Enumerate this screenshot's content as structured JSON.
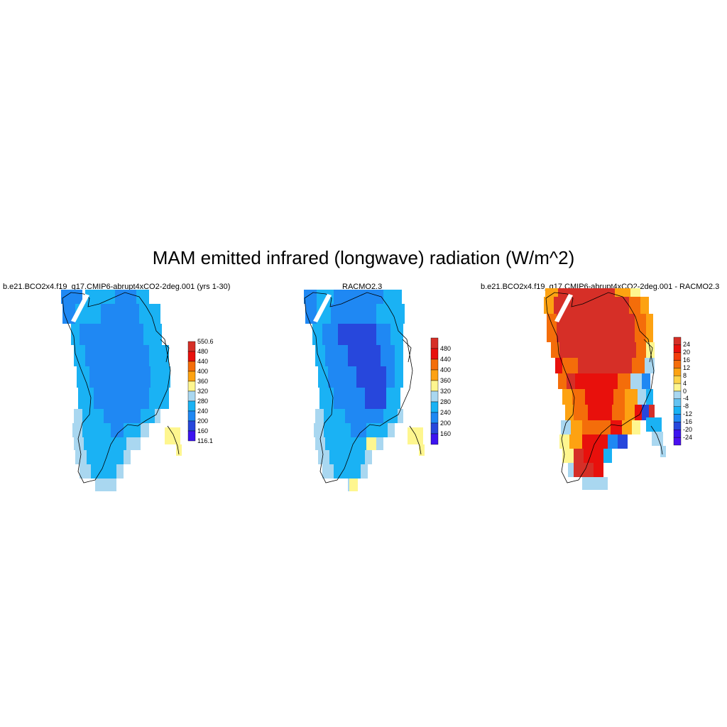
{
  "figure": {
    "title": "MAM emitted infrared (longwave) radiation (W/m^2)"
  },
  "panels": [
    {
      "title": "b.e21.BCO2x4.f19_g17.CMIP6-abrupt4xCO2-2deg.001 (yrs 1-30)",
      "colorbar": {
        "labels": [
          "550.6",
          "480",
          "440",
          "400",
          "360",
          "320",
          "280",
          "240",
          "200",
          "160",
          "116.1"
        ],
        "colors": [
          "#d62f27",
          "#e8100c",
          "#f46d0a",
          "#fda212",
          "#fef68f",
          "#a9d7f0",
          "#1ab2f4",
          "#1f88f3",
          "#2747dc",
          "#3c13f0"
        ]
      }
    },
    {
      "title": "RACMO2.3",
      "colorbar": {
        "labels": [
          "480",
          "440",
          "400",
          "360",
          "320",
          "280",
          "240",
          "200",
          "160"
        ],
        "colors": [
          "#d62f27",
          "#e8100c",
          "#f46d0a",
          "#fda212",
          "#fef68f",
          "#a9d7f0",
          "#1ab2f4",
          "#1f88f3",
          "#2747dc",
          "#3c13f0"
        ]
      }
    },
    {
      "title": "b.e21.BCO2x4.f19_g17.CMIP6-abrupt4xCO2-2deg.001 - RACMO2.3",
      "colorbar": {
        "labels": [
          "24",
          "20",
          "16",
          "12",
          "8",
          "4",
          "0",
          "-4",
          "-8",
          "-12",
          "-16",
          "-20",
          "-24"
        ],
        "colors": [
          "#d62f27",
          "#e8100c",
          "#f23c0b",
          "#f46d0a",
          "#fda212",
          "#fdd44a",
          "#fef68f",
          "#a9d7f0",
          "#64c3f2",
          "#1ab2f4",
          "#1f88f3",
          "#2747dc",
          "#3c13f0",
          "#4a0ff0"
        ]
      }
    }
  ]
}
